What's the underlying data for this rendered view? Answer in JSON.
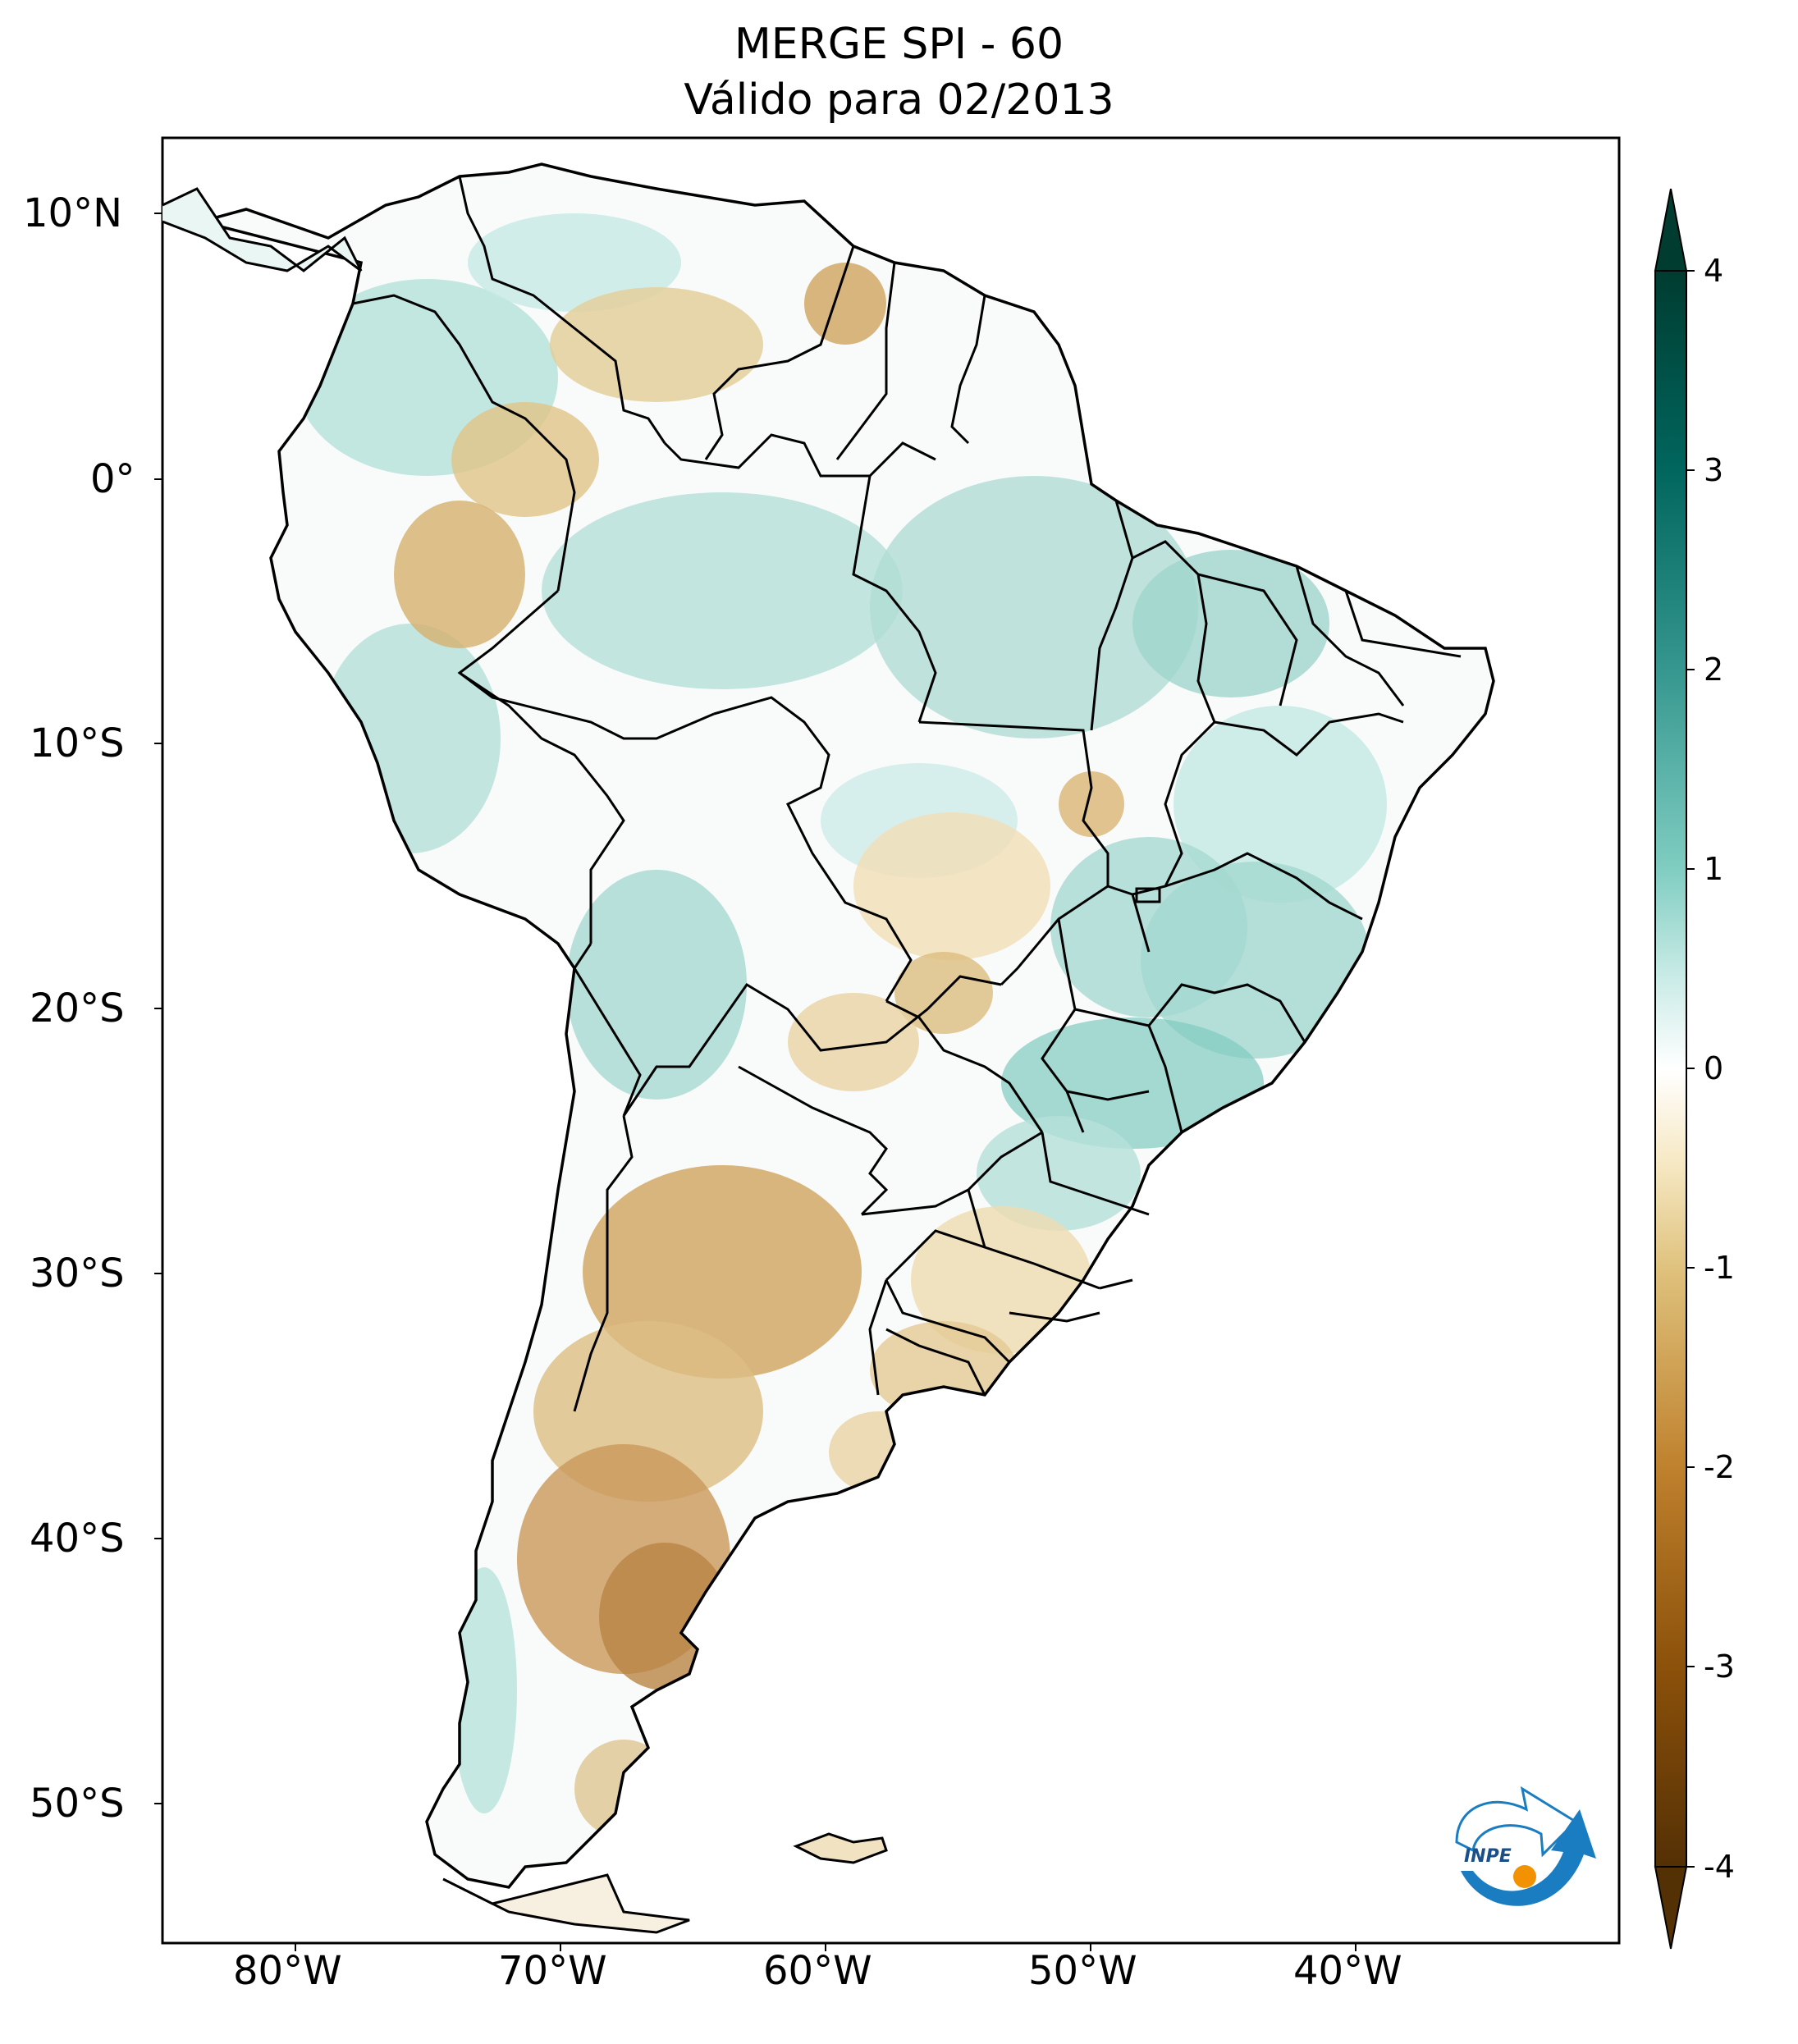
{
  "title": "MERGE   SPI - 60",
  "subtitle": "Válido para 02/2013",
  "lat_ticks": [
    "10°N",
    "0°",
    "10°S",
    "20°S",
    "30°S",
    "40°S",
    "50°S"
  ],
  "lon_ticks": [
    "80°W",
    "70°W",
    "60°W",
    "50°W",
    "40°W"
  ],
  "colorbar": {
    "ticks": [
      "4",
      "3",
      "2",
      "1",
      "0",
      "-1",
      "-2",
      "-3",
      "-4"
    ],
    "range": [
      -4,
      4
    ],
    "extend": "both",
    "colors": [
      "#543005",
      "#8c510a",
      "#bf812d",
      "#dfc27d",
      "#f6e8c3",
      "#ffffff",
      "#c7eae5",
      "#80cdc1",
      "#35978f",
      "#01665e",
      "#003c30"
    ]
  },
  "extent": {
    "lon": [
      -85,
      -30
    ],
    "lat": [
      -56,
      12.5
    ]
  },
  "logo": {
    "text": "INPE"
  }
}
